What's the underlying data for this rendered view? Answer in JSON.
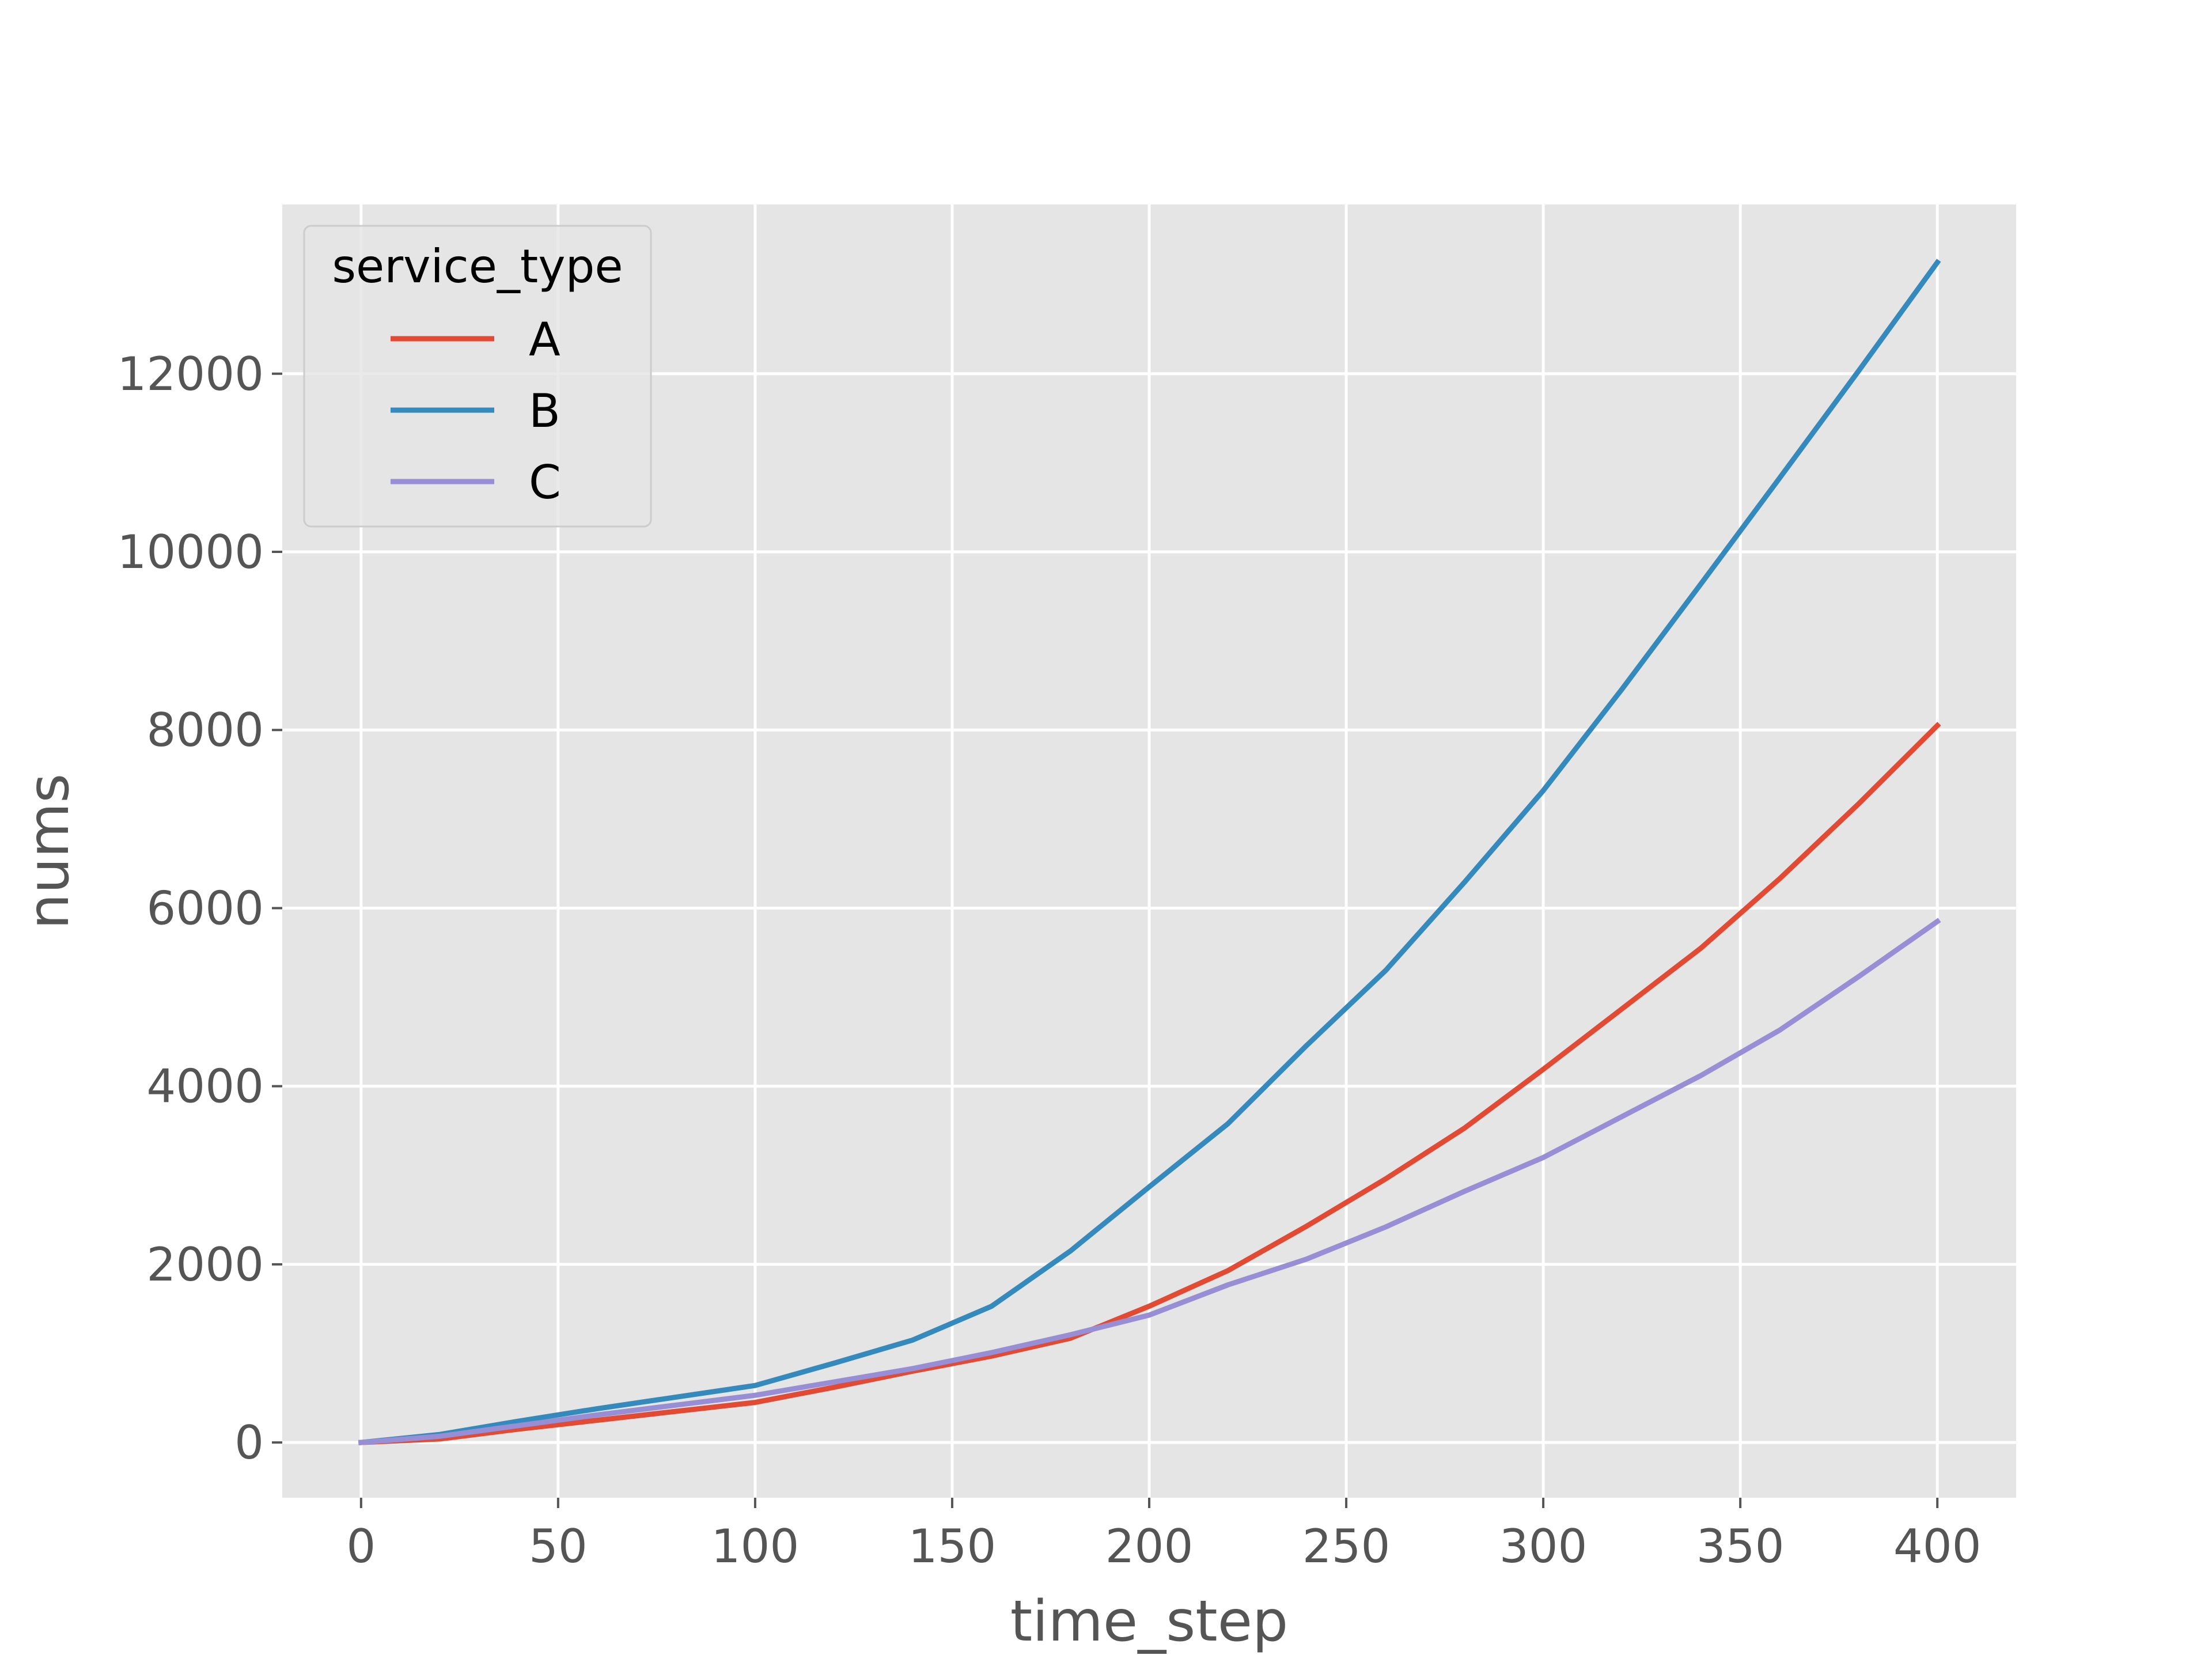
{
  "chart_data": {
    "type": "line",
    "xlabel": "time_step",
    "ylabel": "nums",
    "xlim": [
      -20,
      420
    ],
    "ylim": [
      -620,
      13900
    ],
    "xticks": [
      0,
      50,
      100,
      150,
      200,
      250,
      300,
      350,
      400
    ],
    "xtick_labels": [
      "0",
      "50",
      "100",
      "150",
      "200",
      "250",
      "300",
      "350",
      "400"
    ],
    "yticks": [
      0,
      2000,
      4000,
      6000,
      8000,
      10000,
      12000
    ],
    "ytick_labels": [
      "0",
      "2000",
      "4000",
      "6000",
      "8000",
      "10000",
      "12000"
    ],
    "grid": true,
    "legend": {
      "title": "service_type",
      "position": "top-left"
    },
    "colors": {
      "background": "#e5e5e5",
      "grid": "#ffffff"
    },
    "series": [
      {
        "name": "A",
        "color": "#e24a33",
        "x": [
          0,
          20,
          40,
          60,
          80,
          100,
          120,
          140,
          160,
          180,
          200,
          220,
          240,
          260,
          280,
          300,
          320,
          340,
          360,
          380,
          400
        ],
        "y": [
          0,
          40,
          150,
          250,
          350,
          450,
          620,
          800,
          970,
          1170,
          1530,
          1930,
          2430,
          2960,
          3530,
          4190,
          4870,
          5550,
          6330,
          7170,
          8050
        ]
      },
      {
        "name": "B",
        "color": "#348abd",
        "x": [
          0,
          20,
          40,
          60,
          80,
          100,
          120,
          140,
          160,
          180,
          200,
          220,
          240,
          260,
          280,
          300,
          320,
          340,
          360,
          380,
          400
        ],
        "y": [
          0,
          90,
          240,
          380,
          510,
          640,
          890,
          1150,
          1530,
          2150,
          2870,
          3580,
          4460,
          5300,
          6290,
          7320,
          8460,
          9640,
          10830,
          12030,
          13250
        ]
      },
      {
        "name": "C",
        "color": "#988ed5",
        "x": [
          0,
          20,
          40,
          60,
          80,
          100,
          120,
          140,
          160,
          180,
          200,
          220,
          240,
          260,
          280,
          300,
          320,
          340,
          360,
          380,
          400
        ],
        "y": [
          0,
          70,
          190,
          310,
          420,
          530,
          680,
          830,
          1010,
          1210,
          1430,
          1770,
          2060,
          2420,
          2820,
          3200,
          3660,
          4120,
          4630,
          5230,
          5850
        ]
      }
    ]
  }
}
